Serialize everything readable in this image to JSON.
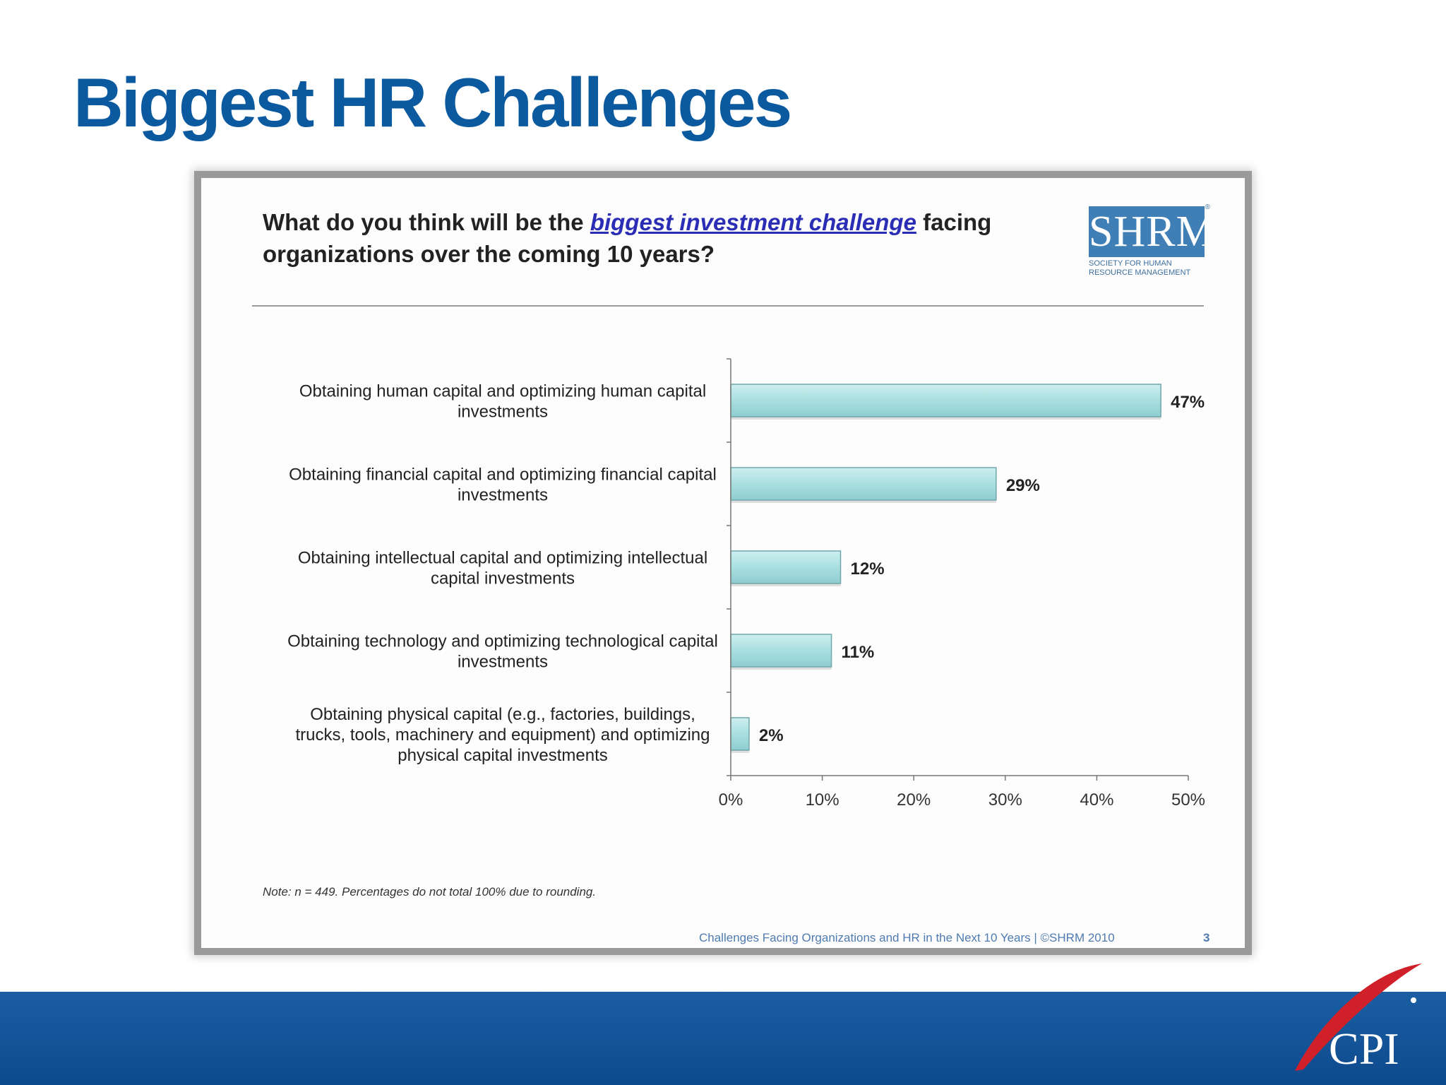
{
  "slide": {
    "title": "Biggest HR Challenges",
    "title_color": "#0b5aa0"
  },
  "panel": {
    "question_part1": "What do you think will be the ",
    "question_highlight": "biggest investment challenge",
    "question_part2": " facing organizations over the coming 10 years?",
    "highlight_color": "#2b2eb5",
    "note": "Note: n = 449. Percentages do not total 100% due to rounding.",
    "footer_source": "Challenges Facing Organizations and HR in the Next 10 Years | ©SHRM 2010",
    "footer_page": "3"
  },
  "logo": {
    "text": "SHRM",
    "subtitle_line1": "SOCIETY FOR HUMAN",
    "subtitle_line2": "RESOURCE MANAGEMENT",
    "icon": "shrm-logo",
    "color": "#3f7fb6"
  },
  "brand": {
    "text": "CPI",
    "icon": "cpi-swoosh-logo",
    "swoosh_color": "#d0202a",
    "band_color": "#0d4f96"
  },
  "chart_data": {
    "type": "bar",
    "orientation": "horizontal",
    "categories": [
      [
        "Obtaining human capital and optimizing human capital",
        "investments"
      ],
      [
        "Obtaining financial capital and optimizing financial capital",
        "investments"
      ],
      [
        "Obtaining intellectual capital and optimizing intellectual",
        "capital investments"
      ],
      [
        "Obtaining technology and optimizing technological capital",
        "investments"
      ],
      [
        "Obtaining physical capital (e.g., factories, buildings,",
        "trucks, tools, machinery and equipment) and optimizing",
        "physical capital investments"
      ]
    ],
    "values": [
      47,
      29,
      12,
      11,
      2
    ],
    "data_labels": [
      "47%",
      "29%",
      "12%",
      "11%",
      "2%"
    ],
    "xlim": [
      0,
      50
    ],
    "xticks": [
      0,
      10,
      20,
      30,
      40,
      50
    ],
    "xtick_labels": [
      "0%",
      "10%",
      "20%",
      "30%",
      "40%",
      "50%"
    ],
    "bar_color": "#a9dfe0",
    "bar_edge_color": "#6fa7aa",
    "grid": false,
    "legend": "none"
  }
}
